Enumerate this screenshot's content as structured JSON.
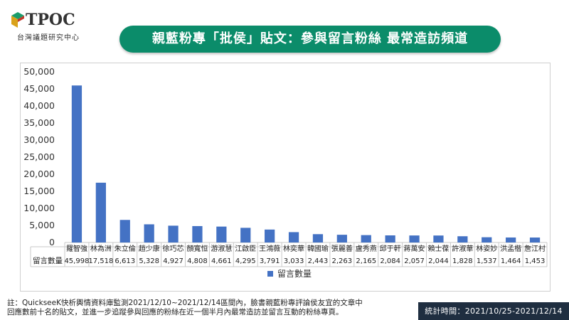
{
  "header": {
    "logo_text": "TPOC",
    "logo_subtitle": "台灣議題研究中心",
    "title": "親藍粉專「批侯」貼文：參與留言粉絲 最常造訪頻道"
  },
  "chart_data": {
    "type": "bar",
    "categories": [
      "羅智強",
      "林為洲",
      "朱立倫",
      "趙少康",
      "徐巧芯",
      "顏寬恒",
      "游淑慧",
      "江啟臣",
      "王鴻薇",
      "林奕華",
      "韓國瑜",
      "張麗善",
      "盧秀燕",
      "邱于軒",
      "蔣萬安",
      "賴士葆",
      "許淑華",
      "林姿妙",
      "洪孟楷",
      "詹江村"
    ],
    "series": [
      {
        "name": "留言數量",
        "values": [
          45998,
          17518,
          6613,
          5328,
          4927,
          4808,
          4661,
          4295,
          3791,
          3033,
          2443,
          2263,
          2165,
          2084,
          2057,
          2044,
          1828,
          1537,
          1464,
          1453
        ],
        "labels": [
          "45,998",
          "17,518",
          "6,613",
          "5,328",
          "4,927",
          "4,808",
          "4,661",
          "4,295",
          "3,791",
          "3,033",
          "2,443",
          "2,263",
          "2,165",
          "2,084",
          "2,057",
          "2,044",
          "1,828",
          "1,537",
          "1,464",
          "1,453"
        ],
        "color": "#4472c4"
      }
    ],
    "title": "",
    "xlabel": "",
    "ylabel": "",
    "ylim": [
      0,
      50000
    ],
    "yticks": [
      "0",
      "5,000",
      "10,000",
      "15,000",
      "20,000",
      "25,000",
      "30,000",
      "35,000",
      "40,000",
      "45,000",
      "50,000"
    ],
    "data_table_row_label": "留言數量",
    "legend": "bottom",
    "grid": false
  },
  "footer": {
    "note_line1": "註：QuickseeK快析輿情資料庫監測2021/12/10~2021/12/14區間內，臉書親藍粉專評論侯友宜的文章中",
    "note_line2": "回應數前十名的貼文，並進一步追蹤參與回應的粉絲在近一個半月內最常造訪並留言互動的粉絲專頁。",
    "stat_period": "統計時間：2021/10/25-2021/12/14"
  },
  "colors": {
    "title_bar": "#0b8c6a",
    "bar": "#4472c4",
    "stat_box": "#1f2e40"
  }
}
